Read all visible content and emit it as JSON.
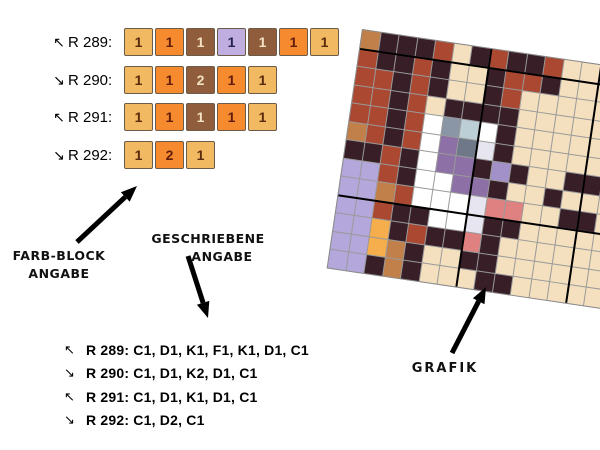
{
  "labels": {
    "farb_block_line1": "FARB-BLOCK",
    "farb_block_line2": "ANGABE",
    "geschriebene_line1": "GESCHRIEBENE",
    "geschriebene_line2": "ANGABE",
    "grafik": "GRAFIK"
  },
  "legend": {
    "block_colors": {
      "C": {
        "bg": "#F2B963",
        "fg": "#5A2A0C"
      },
      "D": {
        "bg": "#F58B2E",
        "fg": "#611C0C"
      },
      "K": {
        "bg": "#8F5D3B",
        "fg": "#F2E2C2"
      },
      "F": {
        "bg": "#C1AEE0",
        "fg": "#252253"
      }
    },
    "rows": [
      {
        "direction": "↖",
        "label": "R 289:",
        "blocks": [
          {
            "code": "C",
            "n": "1"
          },
          {
            "code": "D",
            "n": "1"
          },
          {
            "code": "K",
            "n": "1"
          },
          {
            "code": "F",
            "n": "1"
          },
          {
            "code": "K",
            "n": "1"
          },
          {
            "code": "D",
            "n": "1"
          },
          {
            "code": "C",
            "n": "1"
          }
        ]
      },
      {
        "direction": "↘",
        "label": "R 290:",
        "blocks": [
          {
            "code": "C",
            "n": "1"
          },
          {
            "code": "D",
            "n": "1"
          },
          {
            "code": "K",
            "n": "2"
          },
          {
            "code": "D",
            "n": "1"
          },
          {
            "code": "C",
            "n": "1"
          }
        ]
      },
      {
        "direction": "↖",
        "label": "R 291:",
        "blocks": [
          {
            "code": "C",
            "n": "1"
          },
          {
            "code": "D",
            "n": "1"
          },
          {
            "code": "K",
            "n": "1"
          },
          {
            "code": "D",
            "n": "1"
          },
          {
            "code": "C",
            "n": "1"
          }
        ]
      },
      {
        "direction": "↘",
        "label": "R 292:",
        "blocks": [
          {
            "code": "C",
            "n": "1"
          },
          {
            "code": "D",
            "n": "2"
          },
          {
            "code": "C",
            "n": "1"
          }
        ]
      }
    ]
  },
  "written": {
    "lines": [
      {
        "direction": "↖",
        "text": "R 289: C1, D1, K1, F1, K1, D1, C1"
      },
      {
        "direction": "↘",
        "text": "R 290: C1, D1, K2, D1, C1"
      },
      {
        "direction": "↖",
        "text": "R 291: C1, D1, K1, D1, C1"
      },
      {
        "direction": "↘",
        "text": "R 292: C1, D2, C1"
      }
    ]
  },
  "grid": {
    "rotation_deg": 8.4,
    "palette": {
      "O": "#C18049",
      "D": "#371E27",
      "R": "#AA4831",
      "C": "#F4E0BE",
      "W": "#FFFFFF",
      "B": "#8A96A6",
      "b": "#BDCFD6",
      "P": "#8C70A6",
      "g": "#6F7889",
      "E": "#E7E6F0",
      "Q": "#A291C8",
      "L": "#B3A7DB",
      "S": "#DE8180",
      "G": "#F6AD4B"
    },
    "rows": [
      "ODDDRCDRDDRCCCCC",
      "RDDRDCCDRRDCCCCC",
      "RRDRDCCDRCCCCCCC",
      "RRDRCDDDDCCCCCCC",
      "RRDRWBbWDCCCCCCC",
      "ORDRWPgEDCCCCCCC",
      "DDRDWPPDQDCCDDCC",
      "LLRDWWPPDCCDCCCC",
      "LLORWWWESSCCDDCC",
      "LLRDDWWEDDCCCCCC",
      "LLGDRDDSDCCCCCCC",
      "LLGODCCDDCCCCCCC",
      "LLDODCCCDDCCCCCC"
    ],
    "bold_lines": {
      "after_rows": [
        1,
        9
      ],
      "after_cols": [
        7,
        13
      ]
    }
  },
  "colors": {
    "background": "#FFFFFF",
    "arrow": "#000000",
    "grid_line": "#9A9A9A"
  }
}
